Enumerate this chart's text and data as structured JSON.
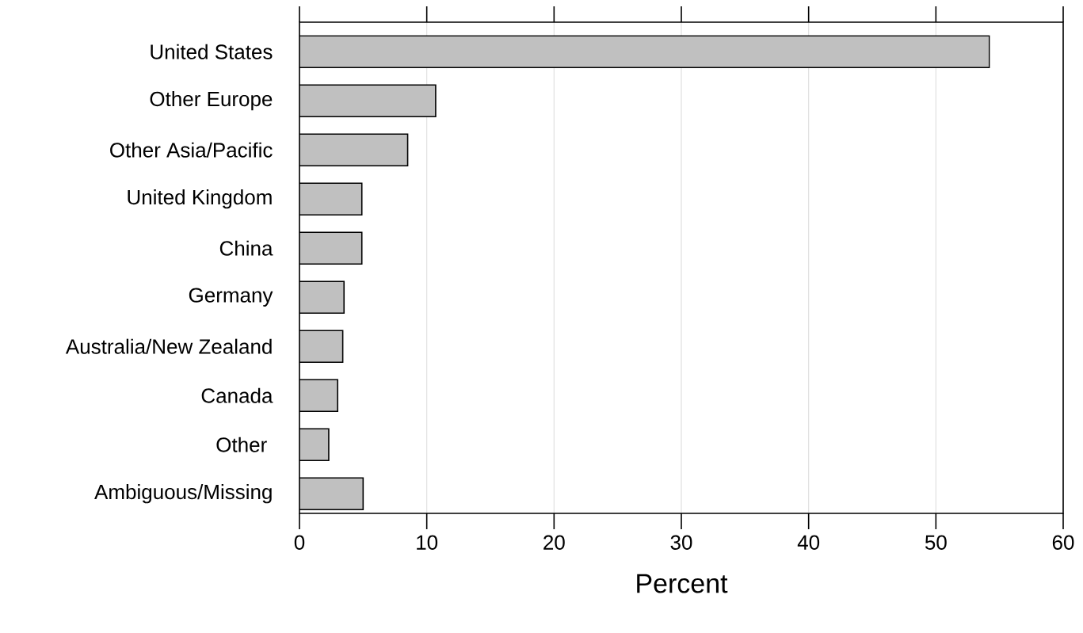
{
  "chart_data": {
    "type": "bar",
    "orientation": "horizontal",
    "xlabel": "Percent",
    "categories": [
      "United States",
      "Other Europe",
      "Other Asia/Pacific",
      "United Kingdom",
      "China",
      "Germany",
      "Australia/New Zealand",
      "Canada",
      "Other ",
      "Ambiguous/Missing"
    ],
    "values": [
      54.2,
      10.7,
      8.5,
      4.9,
      4.9,
      3.5,
      3.4,
      3.0,
      2.3,
      5.0
    ],
    "color": "#c0c0c0",
    "xlim": [
      0,
      60
    ],
    "xticks": [
      0,
      10,
      20,
      30,
      40,
      50,
      60
    ],
    "grid": "x"
  }
}
